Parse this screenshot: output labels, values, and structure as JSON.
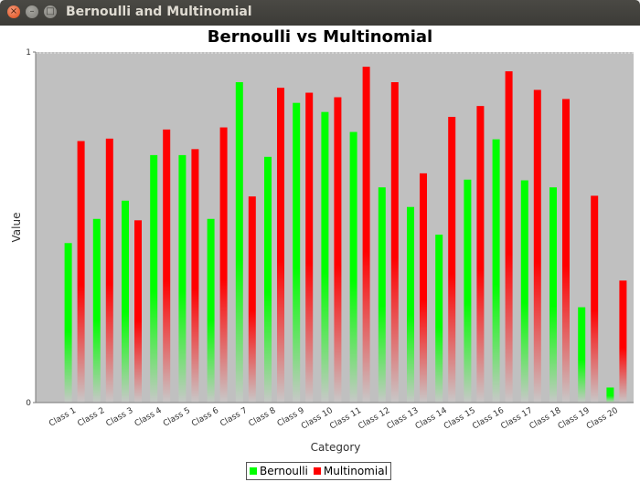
{
  "window": {
    "title": "Bernoulli and Multinomial",
    "close_glyph": "×",
    "minimize_glyph": "–",
    "maximize_glyph": "□"
  },
  "chart_data": {
    "type": "bar",
    "title": "Bernoulli vs Multinomial",
    "xlabel": "Category",
    "ylabel": "Value",
    "ylim": [
      0,
      1
    ],
    "yticks": [
      "0",
      "1"
    ],
    "grid": false,
    "legend_position": "bottom",
    "categories": [
      "Class 1",
      "Class 2",
      "Class 3",
      "Class 4",
      "Class 5",
      "Class 6",
      "Class 7",
      "Class 8",
      "Class 9",
      "Class 10",
      "Class 11",
      "Class 12",
      "Class 13",
      "Class 14",
      "Class 15",
      "Class 16",
      "Class 17",
      "Class 18",
      "Class 19",
      "Class 20"
    ],
    "series": [
      {
        "name": "Bernoulli",
        "color": "#00ff00",
        "values": [
          0.455,
          0.524,
          0.576,
          0.706,
          0.706,
          0.524,
          0.914,
          0.701,
          0.855,
          0.829,
          0.772,
          0.614,
          0.558,
          0.479,
          0.636,
          0.751,
          0.634,
          0.614,
          0.272,
          0.043
        ]
      },
      {
        "name": "Multinomial",
        "color": "#ff0000",
        "values": [
          0.746,
          0.753,
          0.52,
          0.779,
          0.723,
          0.785,
          0.588,
          0.898,
          0.884,
          0.871,
          0.958,
          0.914,
          0.654,
          0.815,
          0.846,
          0.945,
          0.892,
          0.866,
          0.59,
          0.348
        ]
      }
    ]
  },
  "legend": {
    "items": [
      {
        "label": "Bernoulli",
        "color": "#00ff00"
      },
      {
        "label": "Multinomial",
        "color": "#ff0000"
      }
    ]
  }
}
